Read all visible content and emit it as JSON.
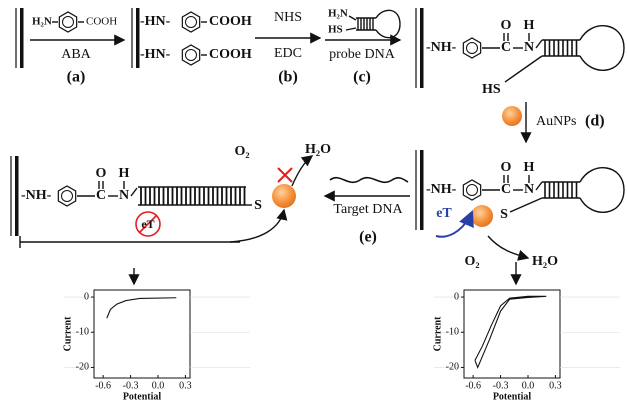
{
  "step_a": {
    "amine": "H₂N",
    "acid": "COOH",
    "arrow_label": "ABA",
    "tag": "(a)"
  },
  "surface": {
    "amine": "-HN-",
    "acid": "COOH"
  },
  "step_b": {
    "top": "NHS",
    "bottom": "EDC",
    "tag": "(b)"
  },
  "step_c": {
    "amine": "H₂N",
    "thiol": "HS",
    "arrow_label": "probe DNA",
    "tag": "(c)"
  },
  "conjugate": {
    "amine": "-NH-",
    "oxygen": "O",
    "carbon": "C",
    "nitrogen": "N",
    "hydrogen": "H",
    "thiol": "HS",
    "sulfur": "S"
  },
  "step_d": {
    "reagent": "AuNPs",
    "tag": "(d)"
  },
  "step_e": {
    "arrow_label": "Target DNA",
    "tag": "(e)"
  },
  "reaction": {
    "electron_transfer": "eT",
    "oxygen": "O₂",
    "water": "H₂O"
  },
  "plots": [
    {
      "y_label": "Current",
      "x_label": "Potential",
      "yticks": [
        "0",
        "-10",
        "-20"
      ],
      "xticks": [
        "-0.6",
        "-0.3",
        "0.0",
        "0.3"
      ]
    },
    {
      "y_label": "Current",
      "x_label": "Potential",
      "yticks": [
        "0",
        "-10",
        "-20"
      ],
      "xticks": [
        "-0.6",
        "-0.3",
        "0.0",
        "0.3"
      ]
    }
  ]
}
